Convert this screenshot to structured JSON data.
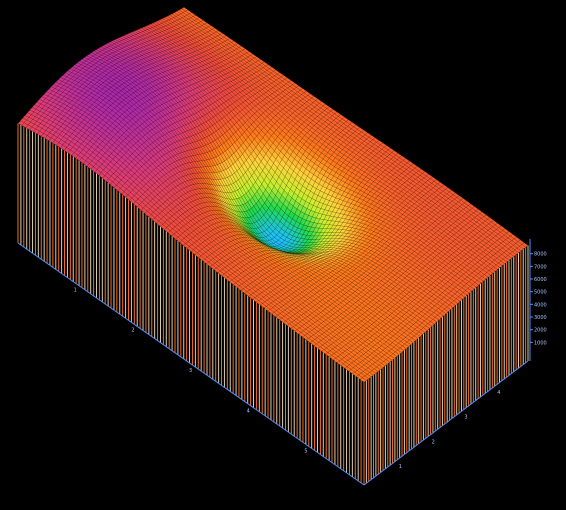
{
  "chart_data": {
    "type": "surface3d",
    "title": "",
    "xlabel": "",
    "ylabel": "",
    "zlabel": "",
    "surface": {
      "base_level": 0,
      "plateau_level": 5600,
      "depression": {
        "center_x": 0.52,
        "center_y": 0.49,
        "min_value": 800,
        "depth": 5000
      },
      "ridge_high": 9400,
      "colormap": [
        "#20c0ff",
        "#21d94d",
        "#c8ef2e",
        "#ffd13a",
        "#ff7a1a",
        "#f24d3a",
        "#d93a7a",
        "#b02aa7",
        "#7a1a9b"
      ]
    },
    "z_axis": {
      "ticks": [
        1000,
        2000,
        3000,
        4000,
        5000,
        6000,
        7000,
        8000
      ],
      "range": [
        0,
        9000
      ]
    },
    "x_axis": {
      "ticks": [
        "1",
        "2",
        "3",
        "4"
      ]
    },
    "y_axis": {
      "ticks": [
        "1",
        "2",
        "3",
        "4",
        "5"
      ]
    },
    "grid": true,
    "legend": "none"
  }
}
